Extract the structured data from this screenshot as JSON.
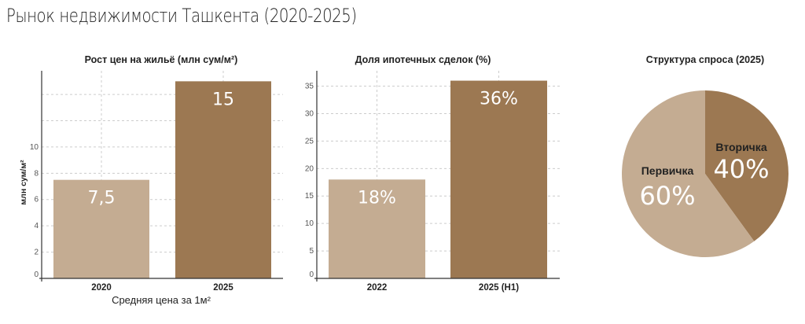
{
  "title": "Рынок недвижимости Ташкента (2020-2025)",
  "colors": {
    "light": "#c4ac92",
    "dark": "#9c7852",
    "grid": "#cccccc",
    "axis": "#333333"
  },
  "chart_data": [
    {
      "type": "bar",
      "title": "Рост цен на жильё (млн сум/м²)",
      "xlabel": "Средняя цена за 1м²",
      "ylabel": "млн сум/м²",
      "categories": [
        "2020",
        "2025"
      ],
      "values": [
        7.5,
        15
      ],
      "value_labels": [
        "7,5",
        "15"
      ],
      "yticks": [
        0,
        2,
        4,
        6,
        8,
        10
      ],
      "ylabels": [
        "0",
        "2",
        "4",
        "6",
        "8",
        "10"
      ],
      "gridlines": [
        0,
        2,
        4,
        6,
        8,
        10,
        12,
        14
      ],
      "ylim": [
        0,
        15.8
      ],
      "grid": true
    },
    {
      "type": "bar",
      "title": "Доля ипотечных сделок (%)",
      "xlabel": "",
      "ylabel": "",
      "categories": [
        "2022",
        "2025 (H1)"
      ],
      "values": [
        18,
        36
      ],
      "value_labels": [
        "18%",
        "36%"
      ],
      "yticks": [
        0,
        5,
        10,
        15,
        20,
        25,
        30,
        35
      ],
      "ylabels": [
        "0",
        "5",
        "10",
        "15",
        "20",
        "25",
        "30",
        "35"
      ],
      "gridlines": [
        0,
        5,
        10,
        15,
        20,
        25,
        30,
        35
      ],
      "ylim": [
        0,
        37.8
      ],
      "grid": true
    },
    {
      "type": "pie",
      "title": "Структура спроса (2025)",
      "slices": [
        {
          "label": "Вторичка",
          "value": 40,
          "value_label": "40%"
        },
        {
          "label": "Первичка",
          "value": 60,
          "value_label": "60%"
        }
      ]
    }
  ]
}
